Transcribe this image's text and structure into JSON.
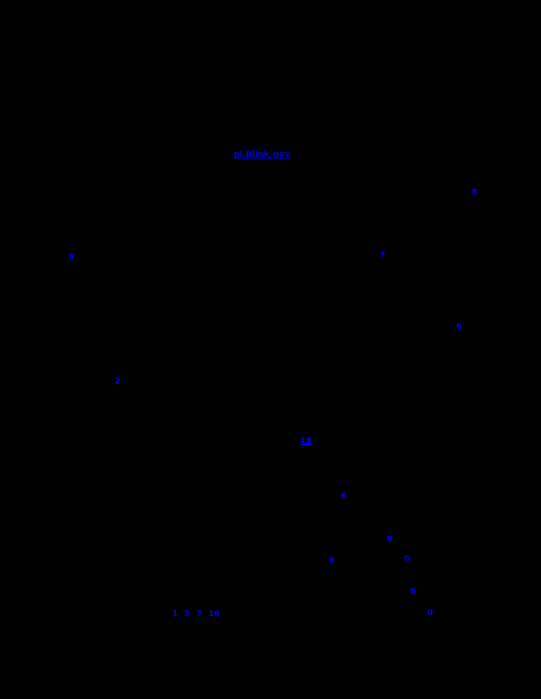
{
  "page": {
    "background_color": "#000000",
    "link_color": "#0000f5",
    "description": "Mostly unrendered (black) paper page showing only blue hyperlink annotations"
  },
  "url_link": {
    "label": "pi.Blink.gov"
  },
  "citations": [
    {
      "label": "8"
    },
    {
      "label": "5"
    },
    {
      "label": "7"
    },
    {
      "label": "6"
    },
    {
      "label": "2"
    },
    {
      "label": "18"
    },
    {
      "label": "6"
    },
    {
      "label": "0"
    },
    {
      "label": "6"
    },
    {
      "label": "0"
    },
    {
      "label": "6"
    },
    {
      "label": "0"
    },
    {
      "label": "1 5 7 10"
    }
  ]
}
